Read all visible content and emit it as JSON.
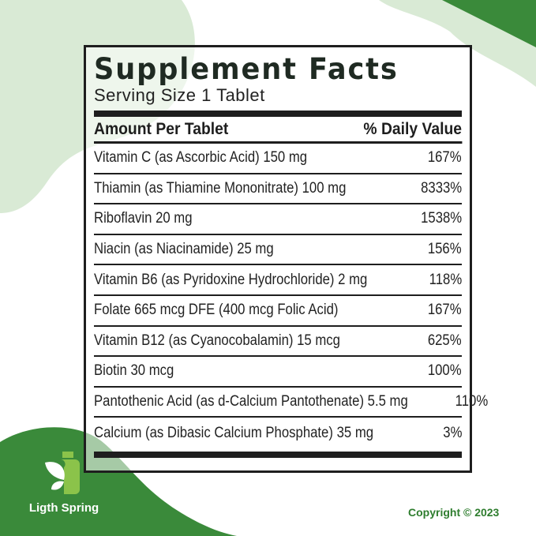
{
  "title": "Supplement Facts",
  "serving": "Serving Size 1 Tablet",
  "header": {
    "amount": "Amount Per Tablet",
    "dv": "% Daily Value"
  },
  "rows": [
    {
      "name": "Vitamin C (as Ascorbic Acid) 150 mg",
      "dv": "167%"
    },
    {
      "name": "Thiamin (as Thiamine Mononitrate) 100 mg",
      "dv": "8333%"
    },
    {
      "name": "Riboflavin 20 mg",
      "dv": "1538%"
    },
    {
      "name": "Niacin (as Niacinamide) 25 mg",
      "dv": "156%"
    },
    {
      "name": "Vitamin B6 (as Pyridoxine Hydrochloride) 2 mg",
      "dv": "118%"
    },
    {
      "name": "Folate 665 mcg DFE (400 mcg Folic Acid)",
      "dv": "167%"
    },
    {
      "name": "Vitamin B12 (as Cyanocobalamin) 15 mcg",
      "dv": "625%"
    },
    {
      "name": "Biotin 30 mcg",
      "dv": "100%"
    },
    {
      "name": "Pantothenic Acid (as d-Calcium Pantothenate) 5.5 mg",
      "dv": "110%"
    },
    {
      "name": "Calcium (as Dibasic Calcium Phosphate) 35 mg",
      "dv": "3%"
    }
  ],
  "brand": "Ligth Spring",
  "copyright": "Copyright © 2023",
  "colors": {
    "dark_green": "#3a8a3a",
    "light_green": "#d9ead5",
    "lime": "#8bc34a"
  }
}
